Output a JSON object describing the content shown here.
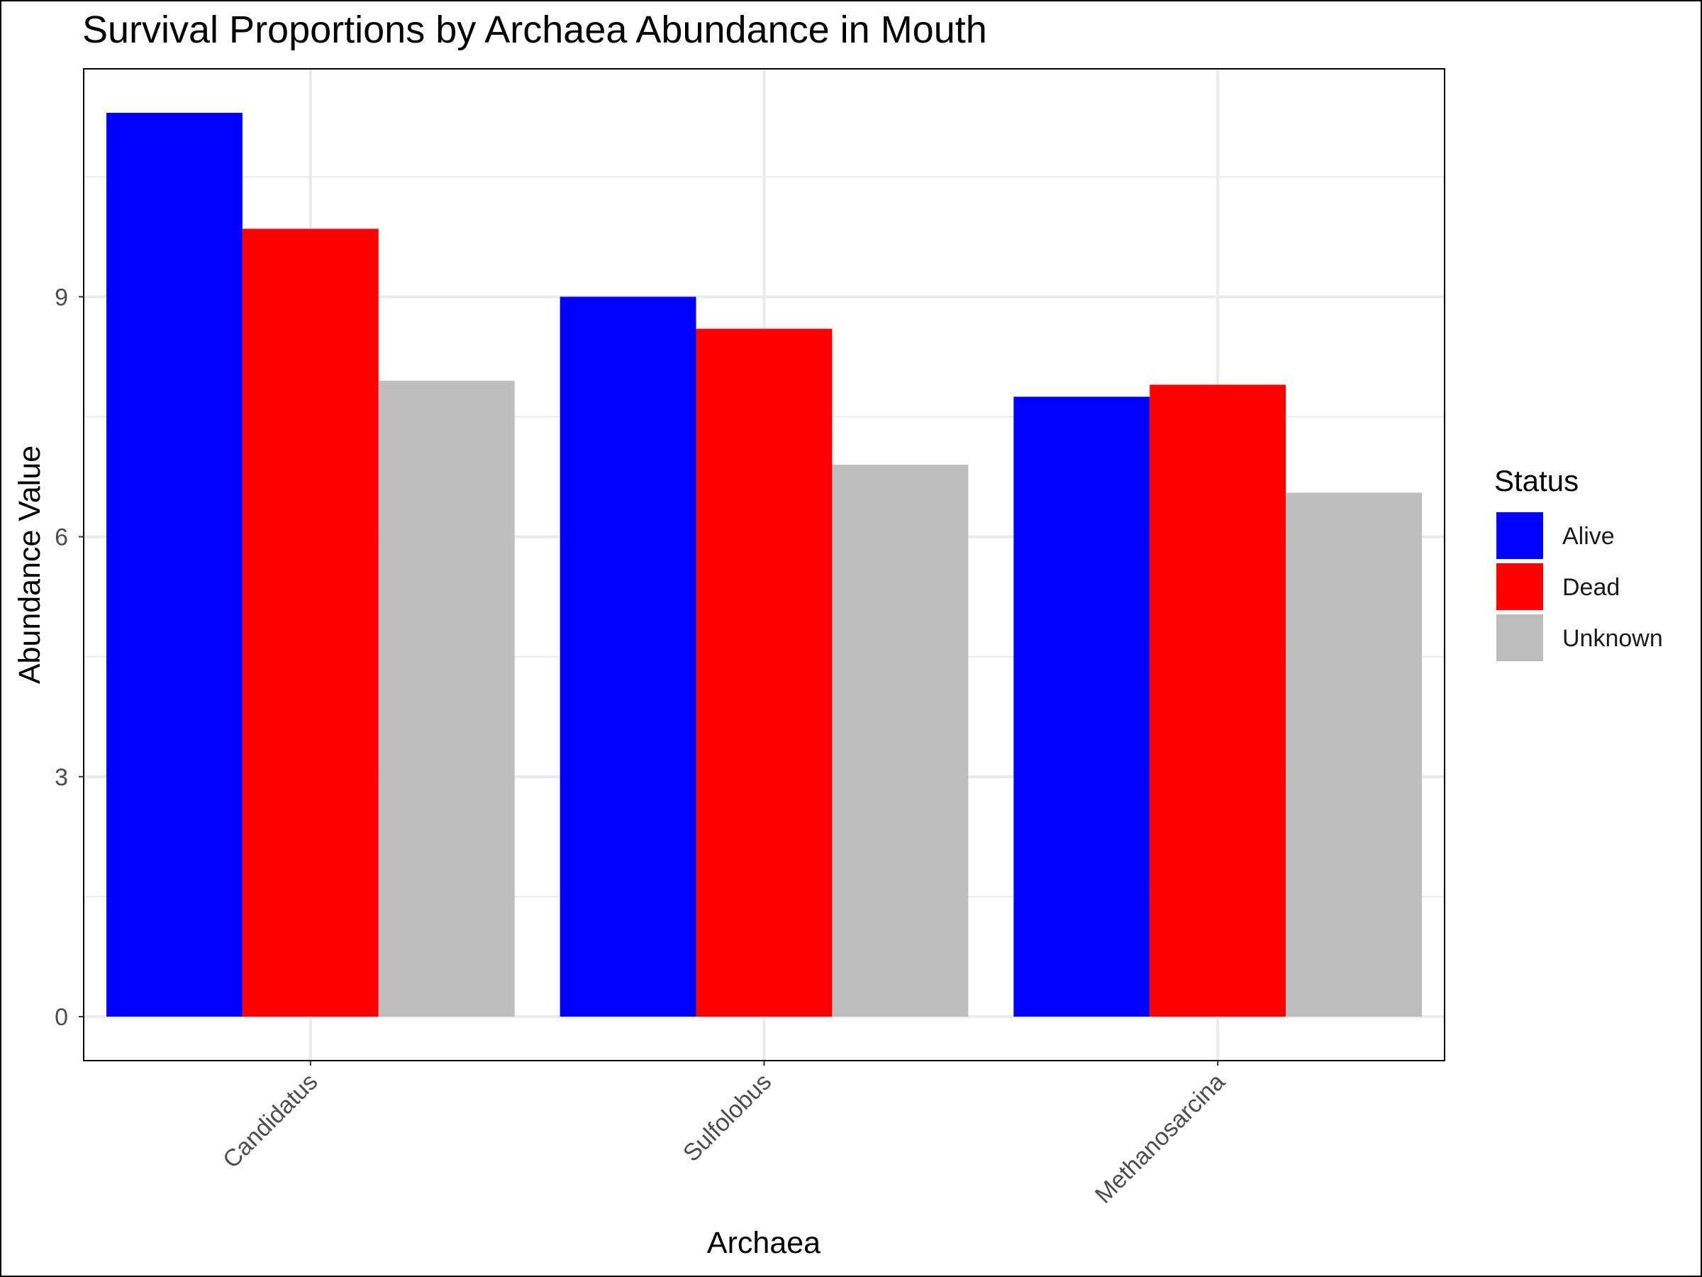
{
  "chart_data": {
    "type": "bar",
    "title": "Survival Proportions by Archaea Abundance in Mouth",
    "xlabel": "Archaea",
    "ylabel": "Abundance Value",
    "categories": [
      "Candidatus",
      "Sulfolobus",
      "Methanosarcina"
    ],
    "series": [
      {
        "name": "Alive",
        "color": "#0000ff",
        "values": [
          11.3,
          9.0,
          7.75
        ]
      },
      {
        "name": "Dead",
        "color": "#ff0000",
        "values": [
          9.85,
          8.6,
          7.9
        ]
      },
      {
        "name": "Unknown",
        "color": "#bebebe",
        "values": [
          7.95,
          6.9,
          6.55
        ]
      }
    ],
    "ylim": [
      -0.55,
      11.85
    ],
    "yticks": [
      0,
      3,
      6,
      9
    ],
    "grid": true,
    "legend": {
      "title": "Status",
      "position": "right"
    }
  }
}
